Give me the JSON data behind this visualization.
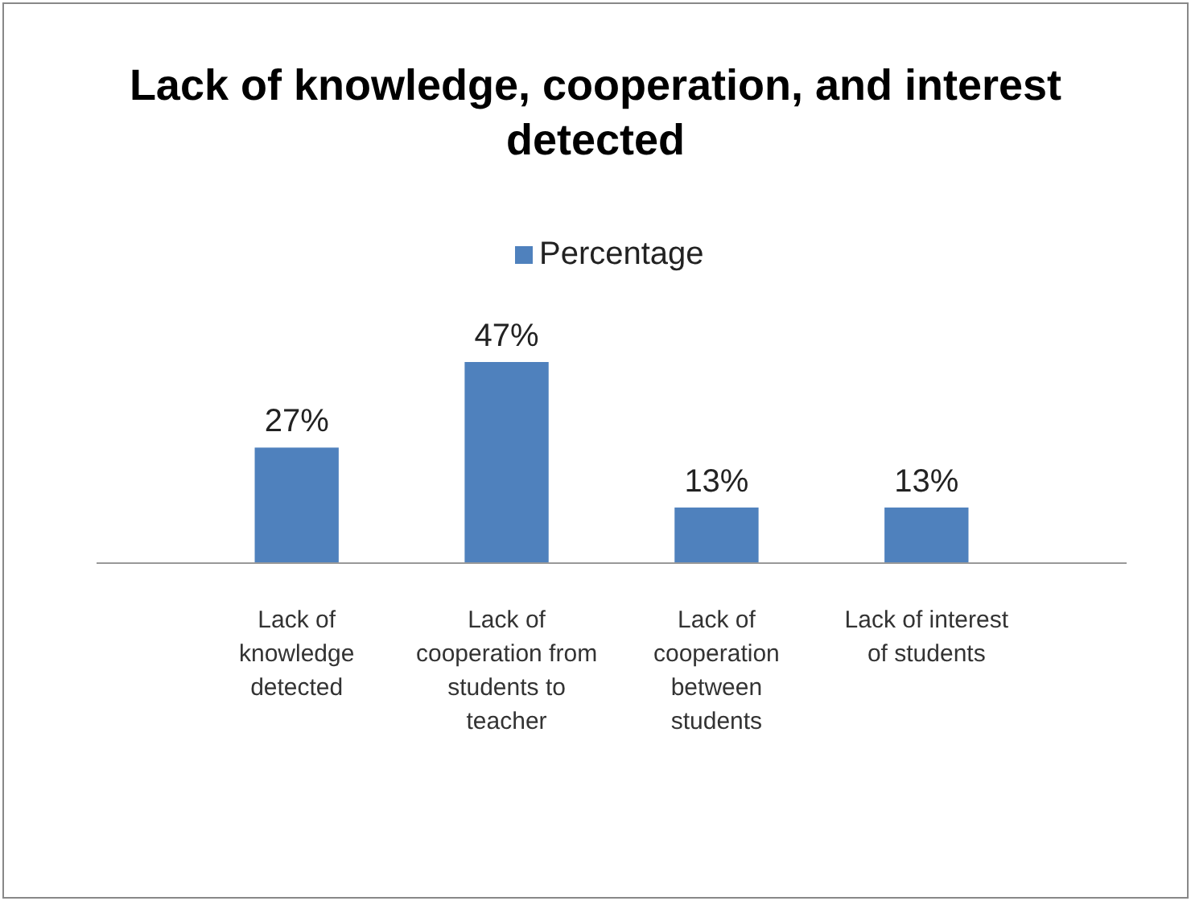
{
  "chart_data": {
    "type": "bar",
    "title": "Lack of knowledge, cooperation, and interest detected",
    "categories": [
      "Lack of knowledge detected",
      "Lack of cooperation from students to teacher",
      "Lack of cooperation between students",
      "Lack of interest of students"
    ],
    "series": [
      {
        "name": "Percentage",
        "color": "#4f81bd",
        "values": [
          27,
          47,
          13,
          13
        ],
        "value_labels": [
          "27%",
          "47%",
          "13%",
          "13%"
        ]
      }
    ],
    "legend": "top",
    "tick_labels": "x"
  }
}
